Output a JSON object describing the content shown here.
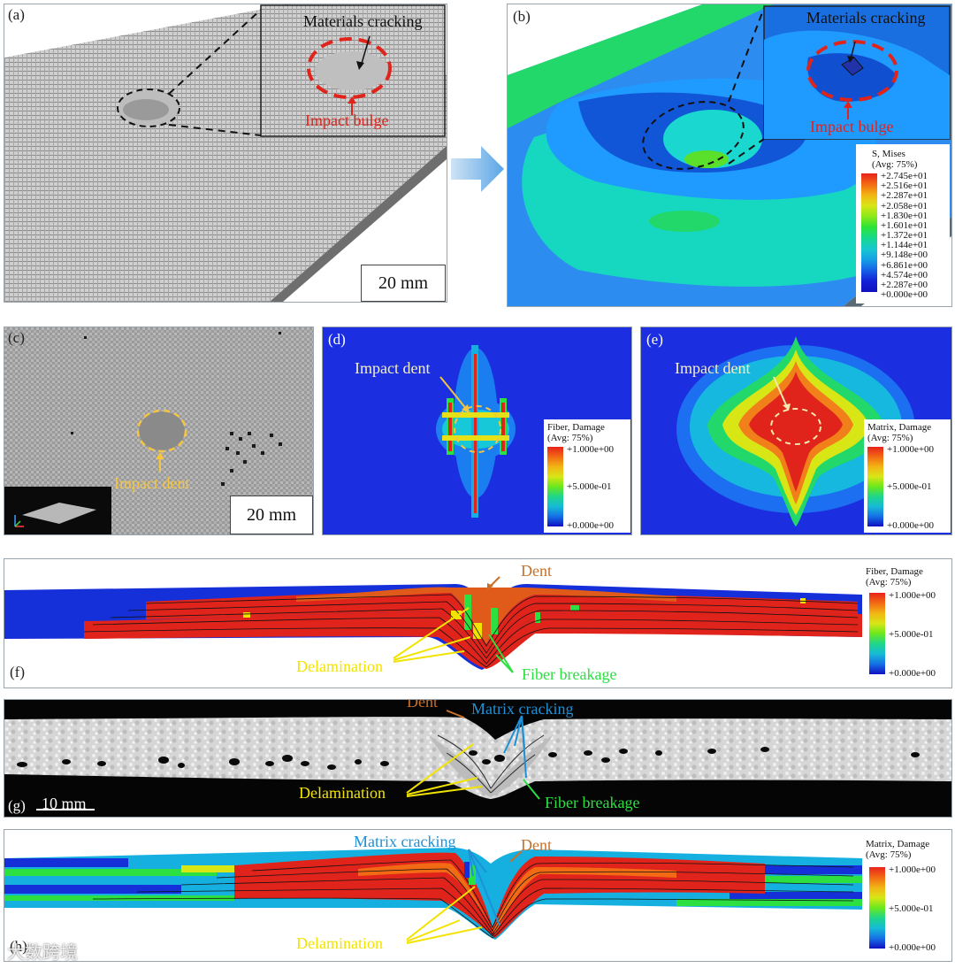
{
  "panels": {
    "a": {
      "label": "(a)",
      "scale": "20 mm",
      "inset_labels": {
        "cracking": "Materials cracking",
        "bulge": "Impact bulge"
      }
    },
    "b": {
      "label": "(b)",
      "inset_labels": {
        "cracking": "Materials cracking",
        "bulge": "Impact bulge"
      },
      "legend": {
        "title1": "S, Mises",
        "title2": "(Avg: 75%)",
        "ticks": [
          "+2.745e+01",
          "+2.516e+01",
          "+2.287e+01",
          "+2.058e+01",
          "+1.830e+01",
          "+1.601e+01",
          "+1.372e+01",
          "+1.144e+01",
          "+9.148e+00",
          "+6.861e+00",
          "+4.574e+00",
          "+2.287e+00",
          "+0.000e+00"
        ]
      }
    },
    "c": {
      "label": "(c)",
      "scale": "20 mm",
      "annotation": "Impact dent"
    },
    "d": {
      "label": "(d)",
      "annotation": "Impact dent",
      "legend": {
        "title1": "Fiber, Damage",
        "title2": "(Avg: 75%)",
        "ticks": [
          "+1.000e+00",
          "+5.000e-01",
          "+0.000e+00"
        ]
      }
    },
    "e": {
      "label": "(e)",
      "annotation": "Impact dent",
      "legend": {
        "title1": "Matrix, Damage",
        "title2": "(Avg: 75%)",
        "ticks": [
          "+1.000e+00",
          "+5.000e-01",
          "+0.000e+00"
        ]
      }
    },
    "f": {
      "label": "(f)",
      "dent": "Dent",
      "delamination": "Delamination",
      "fiber_breakage": "Fiber breakage",
      "legend": {
        "title1": "Fiber, Damage",
        "title2": "(Avg: 75%)",
        "ticks": [
          "+1.000e+00",
          "+5.000e-01",
          "+0.000e+00"
        ]
      }
    },
    "g": {
      "label": "(g)",
      "scale": "10 mm",
      "dent": "Dent",
      "matrix_cracking": "Matrix cracking",
      "delamination": "Delamination",
      "fiber_breakage": "Fiber breakage"
    },
    "h": {
      "label": "(h)",
      "dent": "Dent",
      "matrix_cracking": "Matrix cracking",
      "delamination": "Delamination",
      "legend": {
        "title1": "Matrix, Damage",
        "title2": "(Avg: 75%)",
        "ticks": [
          "+1.000e+00",
          "+5.000e-01",
          "+0.000e+00"
        ]
      }
    }
  },
  "watermark": "大数跨境",
  "colors": {
    "red": "#e0241b",
    "yellow": "#f2e300",
    "cyan": "#1e90d6",
    "orange": "#c8702a",
    "green": "#2fd47a",
    "dent_dashed": "#f5c542"
  }
}
